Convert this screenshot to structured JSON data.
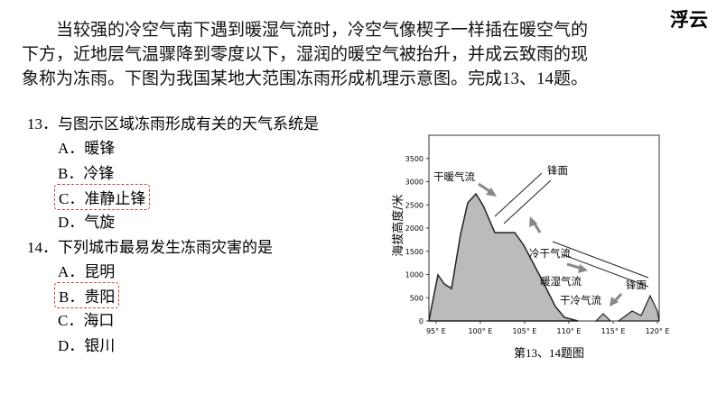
{
  "header": {
    "badge": "浮云"
  },
  "intro": [
    "当较强的冷空气南下遇到暖湿气流时，冷空气像楔子一样插在暖空气的",
    "下方，近地层气温骤降到零度以下，湿润的暖空气被抬升，并成云致雨的现",
    "象称为冻雨。下图为我国某地大范围冻雨形成机理示意图。完成13、14题。"
  ],
  "questions": [
    {
      "stem": "13．与图示区域冻雨形成有关的天气系统是",
      "options": [
        "A．暖锋",
        "B．冷锋",
        "C．准静止锋",
        "D．气旋"
      ],
      "marked": 2
    },
    {
      "stem": "14．下列城市最易发生冻雨灾害的是",
      "options": [
        "A．昆明",
        "B．贵阳",
        "C．海口",
        "D．银川"
      ],
      "marked": 1
    }
  ],
  "figure": {
    "ylabel": "海拔高度/米",
    "caption": "第13、14题图",
    "ylim": [
      0,
      4000
    ],
    "yticks": [
      0,
      500,
      1000,
      1500,
      2000,
      2500,
      3000,
      3500
    ],
    "xlim": [
      94.2,
      120.2
    ],
    "xticks": [
      {
        "value": 95,
        "label": "95° E"
      },
      {
        "value": 100,
        "label": "100° E"
      },
      {
        "value": 105,
        "label": "105° E"
      },
      {
        "value": 110,
        "label": "110° E"
      },
      {
        "value": 115,
        "label": "115° E"
      },
      {
        "value": 120,
        "label": "120° E"
      }
    ],
    "annotations": [
      "干暖气流",
      "锋面",
      "冷干气流",
      "锋面",
      "暖湿气流",
      "干冷气流"
    ]
  }
}
